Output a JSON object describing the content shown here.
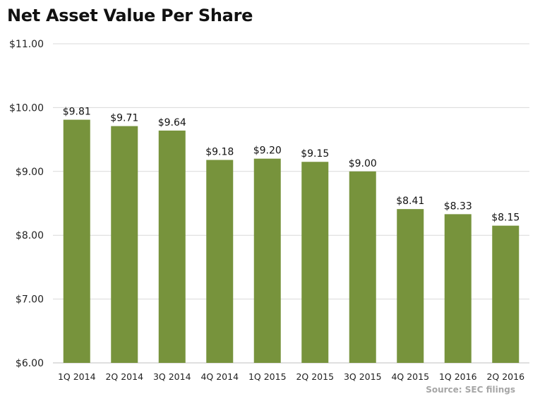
{
  "chart_data": {
    "type": "bar",
    "title": "Net Asset Value Per Share",
    "categories": [
      "1Q 2014",
      "2Q 2014",
      "3Q 2014",
      "4Q 2014",
      "1Q 2015",
      "2Q 2015",
      "3Q 2015",
      "4Q 2015",
      "1Q 2016",
      "2Q 2016"
    ],
    "values": [
      9.81,
      9.71,
      9.64,
      9.18,
      9.2,
      9.15,
      9.0,
      8.41,
      8.33,
      8.15
    ],
    "data_labels": [
      "$9.81",
      "$9.71",
      "$9.64",
      "$9.18",
      "$9.20",
      "$9.15",
      "$9.00",
      "$8.41",
      "$8.33",
      "$8.15"
    ],
    "y_ticks": [
      6,
      7,
      8,
      9,
      10,
      11
    ],
    "y_tick_labels": [
      "$6.00",
      "$7.00",
      "$8.00",
      "$9.00",
      "$10.00",
      "$11.00"
    ],
    "ylim": [
      6,
      11
    ],
    "xlabel": "",
    "ylabel": "",
    "grid": true,
    "legend": "none",
    "bar_color": "#77933C",
    "source": "Source: SEC filings"
  }
}
